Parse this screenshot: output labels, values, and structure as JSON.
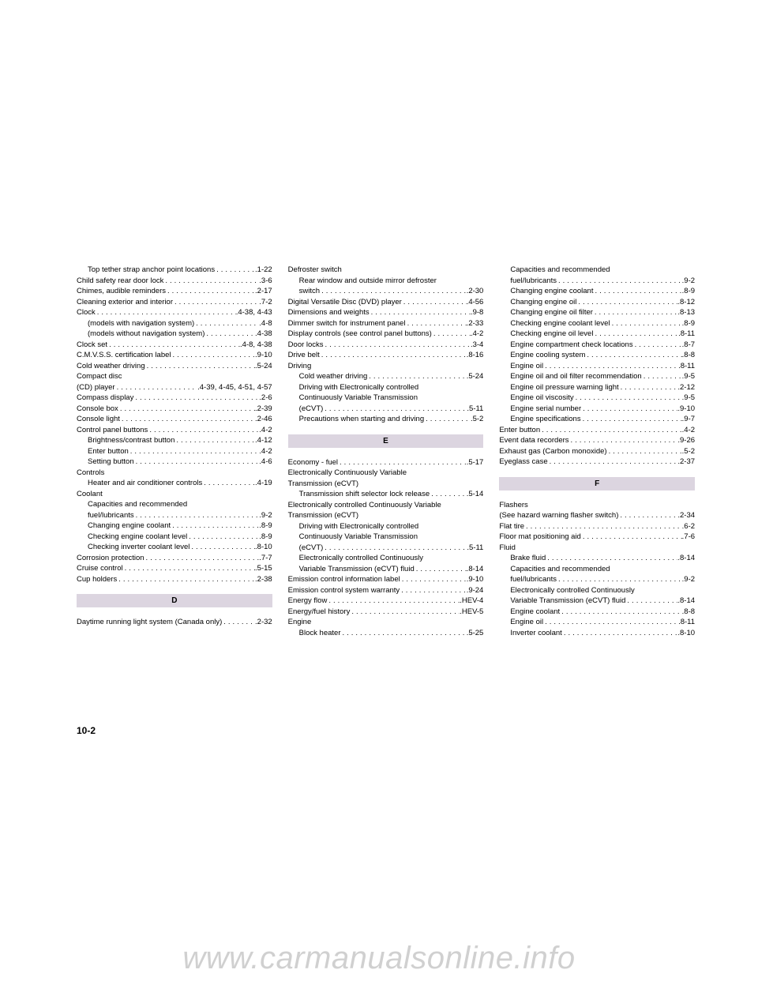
{
  "page_number": "10-2",
  "watermark": "www.carmanualsonline.info",
  "columns": [
    {
      "items": [
        {
          "type": "entry",
          "indent": true,
          "label": "Top tether strap anchor point locations",
          "page": ".1-22"
        },
        {
          "type": "entry",
          "label": "Child safety rear door lock",
          "page": ".3-6"
        },
        {
          "type": "entry",
          "label": "Chimes, audible reminders",
          "page": ".2-17"
        },
        {
          "type": "entry",
          "label": "Cleaning exterior and interior",
          "page": ".7-2"
        },
        {
          "type": "entry",
          "label": "Clock",
          "page": ".4-38, 4-43"
        },
        {
          "type": "entry",
          "indent": true,
          "label": "(models with navigation system)",
          "page": ".4-8"
        },
        {
          "type": "entry",
          "indent": true,
          "label": "(models without navigation system)",
          "page": ".4-38"
        },
        {
          "type": "entry",
          "label": "Clock set",
          "page": ".4-8, 4-38"
        },
        {
          "type": "entry",
          "label": "C.M.V.S.S. certification label",
          "page": ".9-10"
        },
        {
          "type": "entry",
          "label": "Cold weather driving",
          "page": ".5-24"
        },
        {
          "type": "plain",
          "label": "Compact disc"
        },
        {
          "type": "entry",
          "label": "(CD) player",
          "page": ".4-39, 4-45, 4-51, 4-57"
        },
        {
          "type": "entry",
          "label": "Compass display",
          "page": ".2-6"
        },
        {
          "type": "entry",
          "label": "Console box",
          "page": ".2-39"
        },
        {
          "type": "entry",
          "label": "Console light",
          "page": ".2-46"
        },
        {
          "type": "entry",
          "label": "Control panel buttons",
          "page": ".4-2"
        },
        {
          "type": "entry",
          "indent": true,
          "label": "Brightness/contrast button",
          "page": ".4-12"
        },
        {
          "type": "entry",
          "indent": true,
          "label": "Enter button",
          "page": ".4-2"
        },
        {
          "type": "entry",
          "indent": true,
          "label": "Setting button",
          "page": ".4-6"
        },
        {
          "type": "plain",
          "label": "Controls"
        },
        {
          "type": "entry",
          "indent": true,
          "label": "Heater and air conditioner controls",
          "page": ".4-19"
        },
        {
          "type": "plain",
          "label": "Coolant"
        },
        {
          "type": "plain",
          "indent": true,
          "label": "Capacities and recommended"
        },
        {
          "type": "entry",
          "indent": true,
          "label": "fuel/lubricants",
          "page": ".9-2"
        },
        {
          "type": "entry",
          "indent": true,
          "label": "Changing engine coolant",
          "page": ".8-9"
        },
        {
          "type": "entry",
          "indent": true,
          "label": "Checking engine coolant level",
          "page": ".8-9"
        },
        {
          "type": "entry",
          "indent": true,
          "label": "Checking inverter coolant level",
          "page": ".8-10"
        },
        {
          "type": "entry",
          "label": "Corrosion protection",
          "page": ".7-7"
        },
        {
          "type": "entry",
          "label": "Cruise control",
          "page": ".5-15"
        },
        {
          "type": "entry",
          "label": "Cup holders",
          "page": ".2-38"
        },
        {
          "type": "header",
          "label": "D"
        },
        {
          "type": "entry",
          "label": "Daytime running light system (Canada only)",
          "page": ".2-32"
        }
      ]
    },
    {
      "items": [
        {
          "type": "plain",
          "label": "Defroster switch"
        },
        {
          "type": "plain",
          "indent": true,
          "label": "Rear window and outside mirror defroster"
        },
        {
          "type": "entry",
          "indent": true,
          "label": "switch",
          "page": ".2-30"
        },
        {
          "type": "entry",
          "label": "Digital Versatile Disc (DVD) player",
          "page": ".4-56"
        },
        {
          "type": "entry",
          "label": "Dimensions and weights",
          "page": ".9-8"
        },
        {
          "type": "entry",
          "label": "Dimmer switch for instrument panel",
          "page": ".2-33"
        },
        {
          "type": "entry",
          "label": "Display controls (see control panel buttons)",
          "page": ".4-2"
        },
        {
          "type": "entry",
          "label": "Door locks",
          "page": ".3-4"
        },
        {
          "type": "entry",
          "label": "Drive belt",
          "page": ".8-16"
        },
        {
          "type": "plain",
          "label": "Driving"
        },
        {
          "type": "entry",
          "indent": true,
          "label": "Cold weather driving",
          "page": ".5-24"
        },
        {
          "type": "plain",
          "indent": true,
          "label": "Driving with Electronically controlled"
        },
        {
          "type": "plain",
          "indent": true,
          "label": "Continuously Variable Transmission"
        },
        {
          "type": "entry",
          "indent": true,
          "label": "(eCVT)",
          "page": ".5-11"
        },
        {
          "type": "entry",
          "indent": true,
          "label": "Precautions when starting and driving",
          "page": ".5-2"
        },
        {
          "type": "header",
          "label": "E"
        },
        {
          "type": "entry",
          "label": "Economy - fuel",
          "page": ".5-17"
        },
        {
          "type": "plain",
          "label": "Electronically Continuously Variable"
        },
        {
          "type": "plain",
          "label": "Transmission (eCVT)"
        },
        {
          "type": "entry",
          "indent": true,
          "label": "Transmission shift selector lock release",
          "page": ".5-14"
        },
        {
          "type": "plain",
          "label": "Electronically controlled Continuously Variable"
        },
        {
          "type": "plain",
          "label": "Transmission (eCVT)"
        },
        {
          "type": "plain",
          "indent": true,
          "label": "Driving with Electronically controlled"
        },
        {
          "type": "plain",
          "indent": true,
          "label": "Continuously Variable Transmission"
        },
        {
          "type": "entry",
          "indent": true,
          "label": "(eCVT)",
          "page": ".5-11"
        },
        {
          "type": "plain",
          "indent": true,
          "label": "Electronically controlled Continuously"
        },
        {
          "type": "entry",
          "indent": true,
          "label": "Variable Transmission (eCVT) fluid",
          "page": ".8-14"
        },
        {
          "type": "entry",
          "label": "Emission control information label",
          "page": ".9-10"
        },
        {
          "type": "entry",
          "label": "Emission control system warranty",
          "page": ".9-24"
        },
        {
          "type": "entry",
          "label": "Energy flow",
          "page": ".HEV-4"
        },
        {
          "type": "entry",
          "label": "Energy/fuel history",
          "page": ".HEV-5"
        },
        {
          "type": "plain",
          "label": "Engine"
        },
        {
          "type": "entry",
          "indent": true,
          "label": "Block heater",
          "page": ".5-25"
        }
      ]
    },
    {
      "items": [
        {
          "type": "plain",
          "indent": true,
          "label": "Capacities and recommended"
        },
        {
          "type": "entry",
          "indent": true,
          "label": "fuel/lubricants",
          "page": ".9-2"
        },
        {
          "type": "entry",
          "indent": true,
          "label": "Changing engine coolant",
          "page": ".8-9"
        },
        {
          "type": "entry",
          "indent": true,
          "label": "Changing engine oil",
          "page": ".8-12"
        },
        {
          "type": "entry",
          "indent": true,
          "label": "Changing engine oil filter",
          "page": ".8-13"
        },
        {
          "type": "entry",
          "indent": true,
          "label": "Checking engine coolant level",
          "page": ".8-9"
        },
        {
          "type": "entry",
          "indent": true,
          "label": "Checking engine oil level",
          "page": ".8-11"
        },
        {
          "type": "entry",
          "indent": true,
          "label": "Engine compartment check locations",
          "page": ".8-7"
        },
        {
          "type": "entry",
          "indent": true,
          "label": "Engine cooling system",
          "page": ".8-8"
        },
        {
          "type": "entry",
          "indent": true,
          "label": "Engine oil",
          "page": ".8-11"
        },
        {
          "type": "entry",
          "indent": true,
          "label": "Engine oil and oil filter recommendation",
          "page": ".9-5"
        },
        {
          "type": "entry",
          "indent": true,
          "label": "Engine oil pressure warning light",
          "page": ".2-12"
        },
        {
          "type": "entry",
          "indent": true,
          "label": "Engine oil viscosity",
          "page": ".9-5"
        },
        {
          "type": "entry",
          "indent": true,
          "label": "Engine serial number",
          "page": ".9-10"
        },
        {
          "type": "entry",
          "indent": true,
          "label": "Engine specifications",
          "page": ".9-7"
        },
        {
          "type": "entry",
          "label": "Enter button",
          "page": ".4-2"
        },
        {
          "type": "entry",
          "label": "Event data recorders",
          "page": ".9-26"
        },
        {
          "type": "entry",
          "label": "Exhaust gas (Carbon monoxide)",
          "page": ".5-2"
        },
        {
          "type": "entry",
          "label": "Eyeglass case",
          "page": ".2-37"
        },
        {
          "type": "header",
          "label": "F"
        },
        {
          "type": "plain",
          "label": "Flashers"
        },
        {
          "type": "entry",
          "label": "(See hazard warning flasher switch)",
          "page": ".2-34"
        },
        {
          "type": "entry",
          "label": "Flat tire",
          "page": ".6-2"
        },
        {
          "type": "entry",
          "label": "Floor mat positioning aid",
          "page": ".7-6"
        },
        {
          "type": "plain",
          "label": "Fluid"
        },
        {
          "type": "entry",
          "indent": true,
          "label": "Brake fluid",
          "page": ".8-14"
        },
        {
          "type": "plain",
          "indent": true,
          "label": "Capacities and recommended"
        },
        {
          "type": "entry",
          "indent": true,
          "label": "fuel/lubricants",
          "page": ".9-2"
        },
        {
          "type": "plain",
          "indent": true,
          "label": "Electronically controlled Continuously"
        },
        {
          "type": "entry",
          "indent": true,
          "label": "Variable Transmission (eCVT) fluid",
          "page": ".8-14"
        },
        {
          "type": "entry",
          "indent": true,
          "label": "Engine coolant",
          "page": ".8-8"
        },
        {
          "type": "entry",
          "indent": true,
          "label": "Engine oil",
          "page": ".8-11"
        },
        {
          "type": "entry",
          "indent": true,
          "label": "Inverter coolant",
          "page": ".8-10"
        }
      ]
    }
  ]
}
